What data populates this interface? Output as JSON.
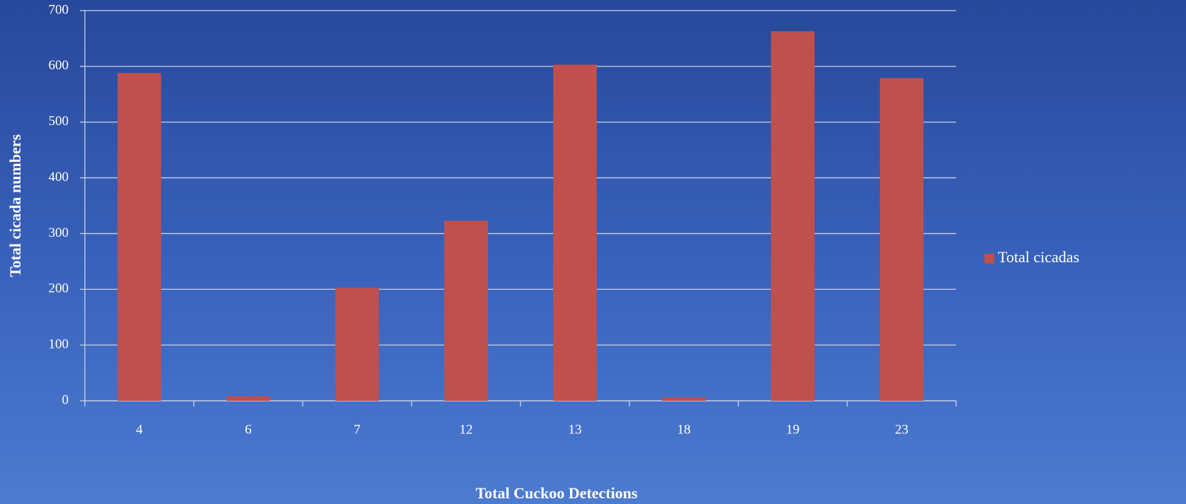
{
  "chart_data": {
    "type": "bar",
    "x_label": "Total Cuckoo Detections",
    "y_label": "Total cicada numbers",
    "categories": [
      "4",
      "6",
      "7",
      "12",
      "13",
      "18",
      "19",
      "23"
    ],
    "series": [
      {
        "name": "Total cicadas",
        "color": "#c0504d",
        "values": [
          588,
          8,
          203,
          323,
          603,
          6,
          663,
          579
        ]
      }
    ],
    "ylim": [
      0,
      700
    ],
    "yticks": [
      0,
      100,
      200,
      300,
      400,
      500,
      600,
      700
    ],
    "grid": true,
    "legend": "right"
  }
}
